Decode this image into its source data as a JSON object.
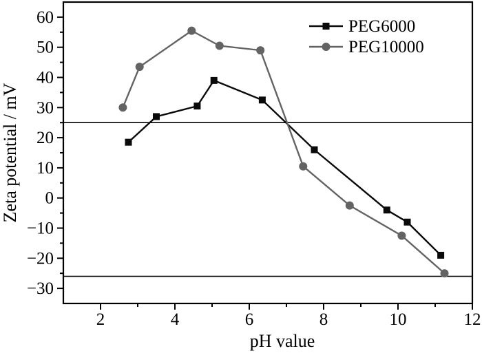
{
  "figure": {
    "background": "#ffffff",
    "frame_color": "#000000",
    "text_color": "#000000"
  },
  "chart_data": {
    "type": "line",
    "title": "",
    "xlabel": "pH value",
    "ylabel": "Zeta potential / mV",
    "xlim": [
      1,
      12
    ],
    "ylim": [
      -35,
      65
    ],
    "x_major_ticks": [
      2,
      4,
      6,
      8,
      10,
      12
    ],
    "x_minor_step": 1,
    "y_major_ticks": [
      -30,
      -20,
      -10,
      0,
      10,
      20,
      30,
      40,
      50,
      60
    ],
    "y_minor_step": 5,
    "grid": false,
    "legend_position": "top-right-inside",
    "reference_lines": [
      {
        "y": 25
      },
      {
        "y": -26
      }
    ],
    "series": [
      {
        "name": "PEG6000",
        "marker": "square",
        "color": "#0a0a0a",
        "x": [
          2.75,
          3.5,
          4.6,
          5.05,
          6.35,
          7.75,
          9.7,
          10.25,
          11.15
        ],
        "y": [
          18.5,
          27,
          30.5,
          39,
          32.5,
          16,
          -4,
          -8,
          -19
        ]
      },
      {
        "name": "PEG10000",
        "marker": "circle",
        "color": "#636363",
        "x": [
          2.6,
          3.05,
          4.45,
          5.2,
          6.3,
          7.45,
          8.7,
          10.1,
          11.25
        ],
        "y": [
          30,
          43.5,
          55.5,
          50.5,
          49,
          10.5,
          -2.5,
          -12.5,
          -25
        ]
      }
    ]
  }
}
